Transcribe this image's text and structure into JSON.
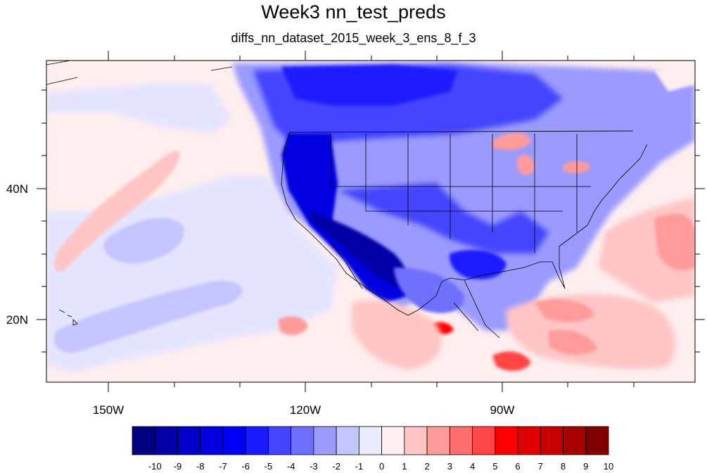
{
  "title": "Week3 nn_test_preds",
  "subtitle": "diffs_nn_dataset_2015_week_3_ens_8_f_3",
  "axes": {
    "x_ticks": [
      "150W",
      "120W",
      "90W"
    ],
    "y_ticks": [
      "40N",
      "20N"
    ]
  },
  "colorbar": {
    "labels": [
      "-10",
      "-9",
      "-8",
      "-7",
      "-6",
      "-5",
      "-4",
      "-3",
      "-2",
      "-1",
      "0",
      "1",
      "2",
      "3",
      "4",
      "5",
      "6",
      "7",
      "8",
      "9",
      "10"
    ],
    "colors": [
      "#000080",
      "#0000a6",
      "#0000c8",
      "#0000e0",
      "#0000f5",
      "#1a1aff",
      "#4545ff",
      "#6f6fff",
      "#9a9aff",
      "#c4c4ff",
      "#ececff",
      "#ffeeee",
      "#ffc4c4",
      "#ff9a9a",
      "#ff6f6f",
      "#ff4545",
      "#ff0000",
      "#e00000",
      "#c80000",
      "#a60000",
      "#800000"
    ]
  }
}
